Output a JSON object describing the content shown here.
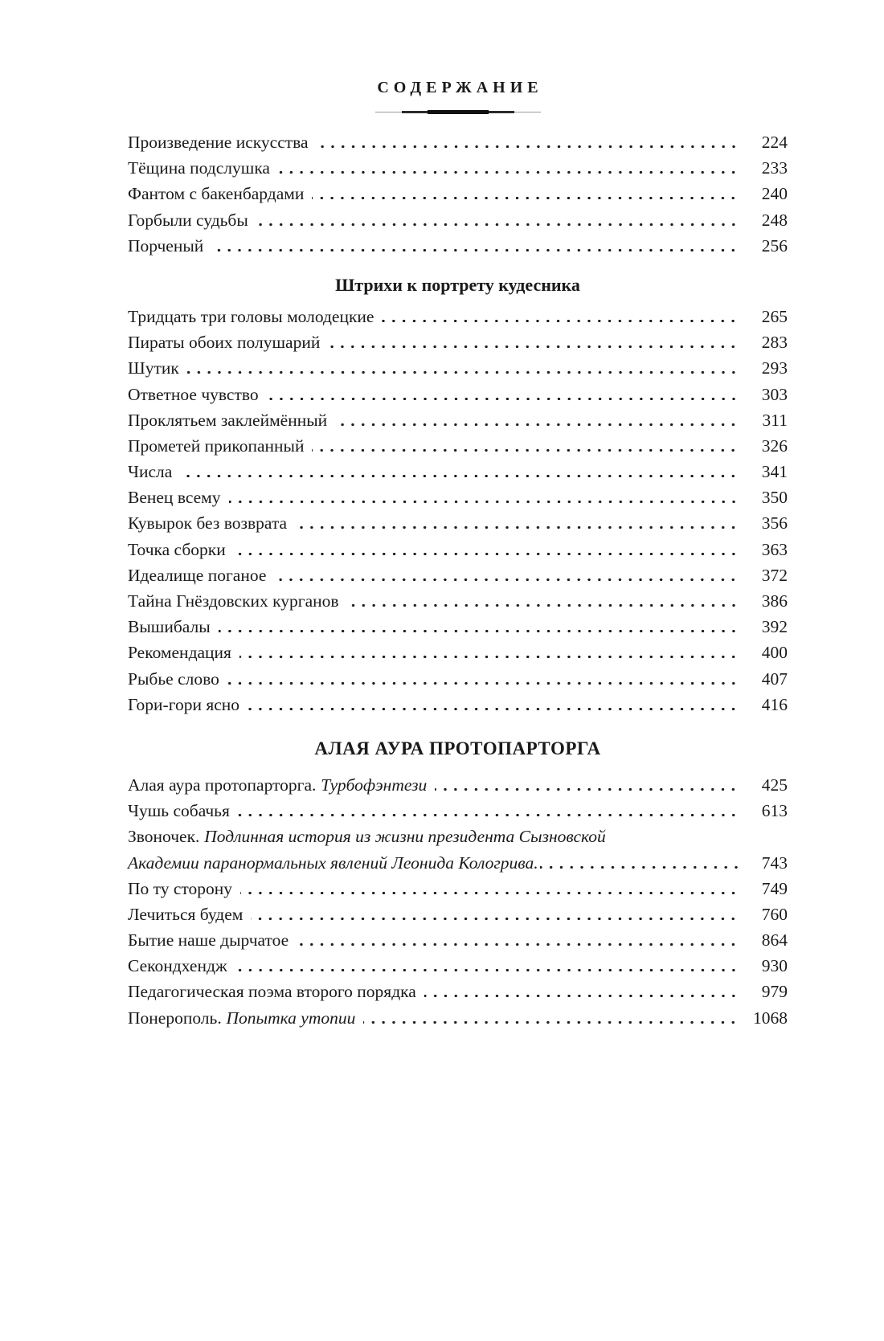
{
  "colors": {
    "ink": "#1a1a1a",
    "paper": "#ffffff",
    "ornament_gray": "#9a9a9a"
  },
  "page": {
    "title": "СОДЕРЖАНИЕ",
    "sections": [
      {
        "entries": [
          {
            "title": "Произведение искусства",
            "page": "224"
          },
          {
            "title": "Тёщина подслушка",
            "page": "233"
          },
          {
            "title": "Фантом с бакенбардами",
            "page": "240"
          },
          {
            "title": "Горбыли судьбы",
            "page": "248"
          },
          {
            "title": "Порченый",
            "page": "256"
          }
        ]
      },
      {
        "heading": "Штрихи к портрету кудесника",
        "entries": [
          {
            "title": "Тридцать три головы молодецкие",
            "page": "265"
          },
          {
            "title": "Пираты обоих полушарий",
            "page": "283"
          },
          {
            "title": "Шутик",
            "page": "293"
          },
          {
            "title": "Ответное чувство",
            "page": "303"
          },
          {
            "title": "Проклятьем заклеймённый",
            "page": "311"
          },
          {
            "title": "Прометей прикопанный",
            "page": "326"
          },
          {
            "title": "Числа",
            "page": "341"
          },
          {
            "title": "Венец всему",
            "page": "350"
          },
          {
            "title": "Кувырок без возврата",
            "page": "356"
          },
          {
            "title": "Точка сборки",
            "page": "363"
          },
          {
            "title": "Идеалище поганое",
            "page": "372"
          },
          {
            "title": "Тайна Гнёздовских курганов",
            "page": "386"
          },
          {
            "title": "Вышибалы",
            "page": "392"
          },
          {
            "title": "Рекомендация",
            "page": "400"
          },
          {
            "title": "Рыбье слово",
            "page": "407"
          },
          {
            "title": "Гори-гори ясно",
            "page": "416"
          }
        ]
      },
      {
        "heading": "АЛАЯ АУРА ПРОТОПАРТОРГА",
        "entries": [
          {
            "title": "Алая аура протопарторга.",
            "italic": "Турбофэнтези",
            "page": "425"
          },
          {
            "title": "Чушь собачья",
            "page": "613"
          },
          {
            "title": "Звоночек.",
            "italic": "Подлинная история из жизни президента Сызновской",
            "italic2": "Академии паранормальных явлений Леонида Кологрива.",
            "page": "743"
          },
          {
            "title": "По ту сторону",
            "page": "749"
          },
          {
            "title": "Лечиться будем",
            "page": "760"
          },
          {
            "title": "Бытие наше дырчатое",
            "page": "864"
          },
          {
            "title": "Секондхендж",
            "page": "930"
          },
          {
            "title": "Педагогическая поэма второго порядка",
            "page": "979"
          },
          {
            "title": "Понерополь.",
            "italic": "Попытка утопии",
            "page": "1068"
          }
        ]
      }
    ]
  }
}
